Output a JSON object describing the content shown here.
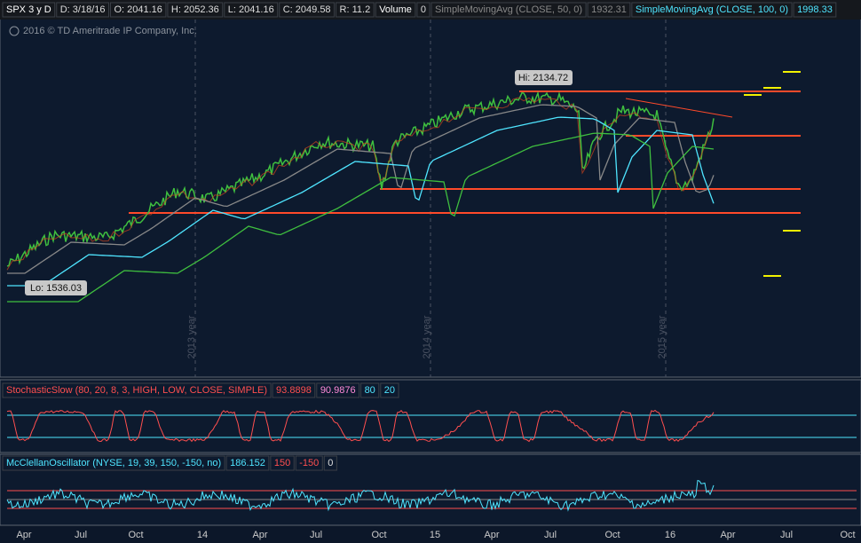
{
  "header": {
    "items": [
      "SPX 3 y D",
      "D: 3/18/16",
      "O: 2041.16",
      "H: 2052.36",
      "L: 2041.16",
      "C: 2049.58",
      "R: 11.2",
      "Volume",
      "0",
      "SimpleMovingAvg (CLOSE, 50, 0)",
      "1932.31",
      "SimpleMovingAvg (CLOSE, 100, 0)",
      "1998.33"
    ]
  },
  "copyright": "2016 © TD Ameritrade IP Company, Inc.",
  "annotations": {
    "hi": "Hi: 2134.72",
    "lo": "Lo: 1536.03",
    "years": [
      "2013 year",
      "2014 year",
      "2015 year"
    ]
  },
  "stochastic": {
    "items": [
      "StochasticSlow (80, 20, 8, 3, HIGH, LOW, CLOSE, SIMPLE)",
      "93.8898",
      "90.9876",
      "80",
      "20"
    ]
  },
  "mcclellan": {
    "items": [
      "McClellanOscillator (NYSE, 19, 39, 150, -150, no)",
      "186.152",
      "150",
      "-150",
      "0"
    ]
  },
  "x_axis": {
    "labels": [
      "Apr",
      "Jul",
      "Oct",
      "14",
      "Apr",
      "Jul",
      "Oct",
      "15",
      "Apr",
      "Jul",
      "Oct",
      "16",
      "Apr",
      "Jul",
      "Oct"
    ]
  }
}
